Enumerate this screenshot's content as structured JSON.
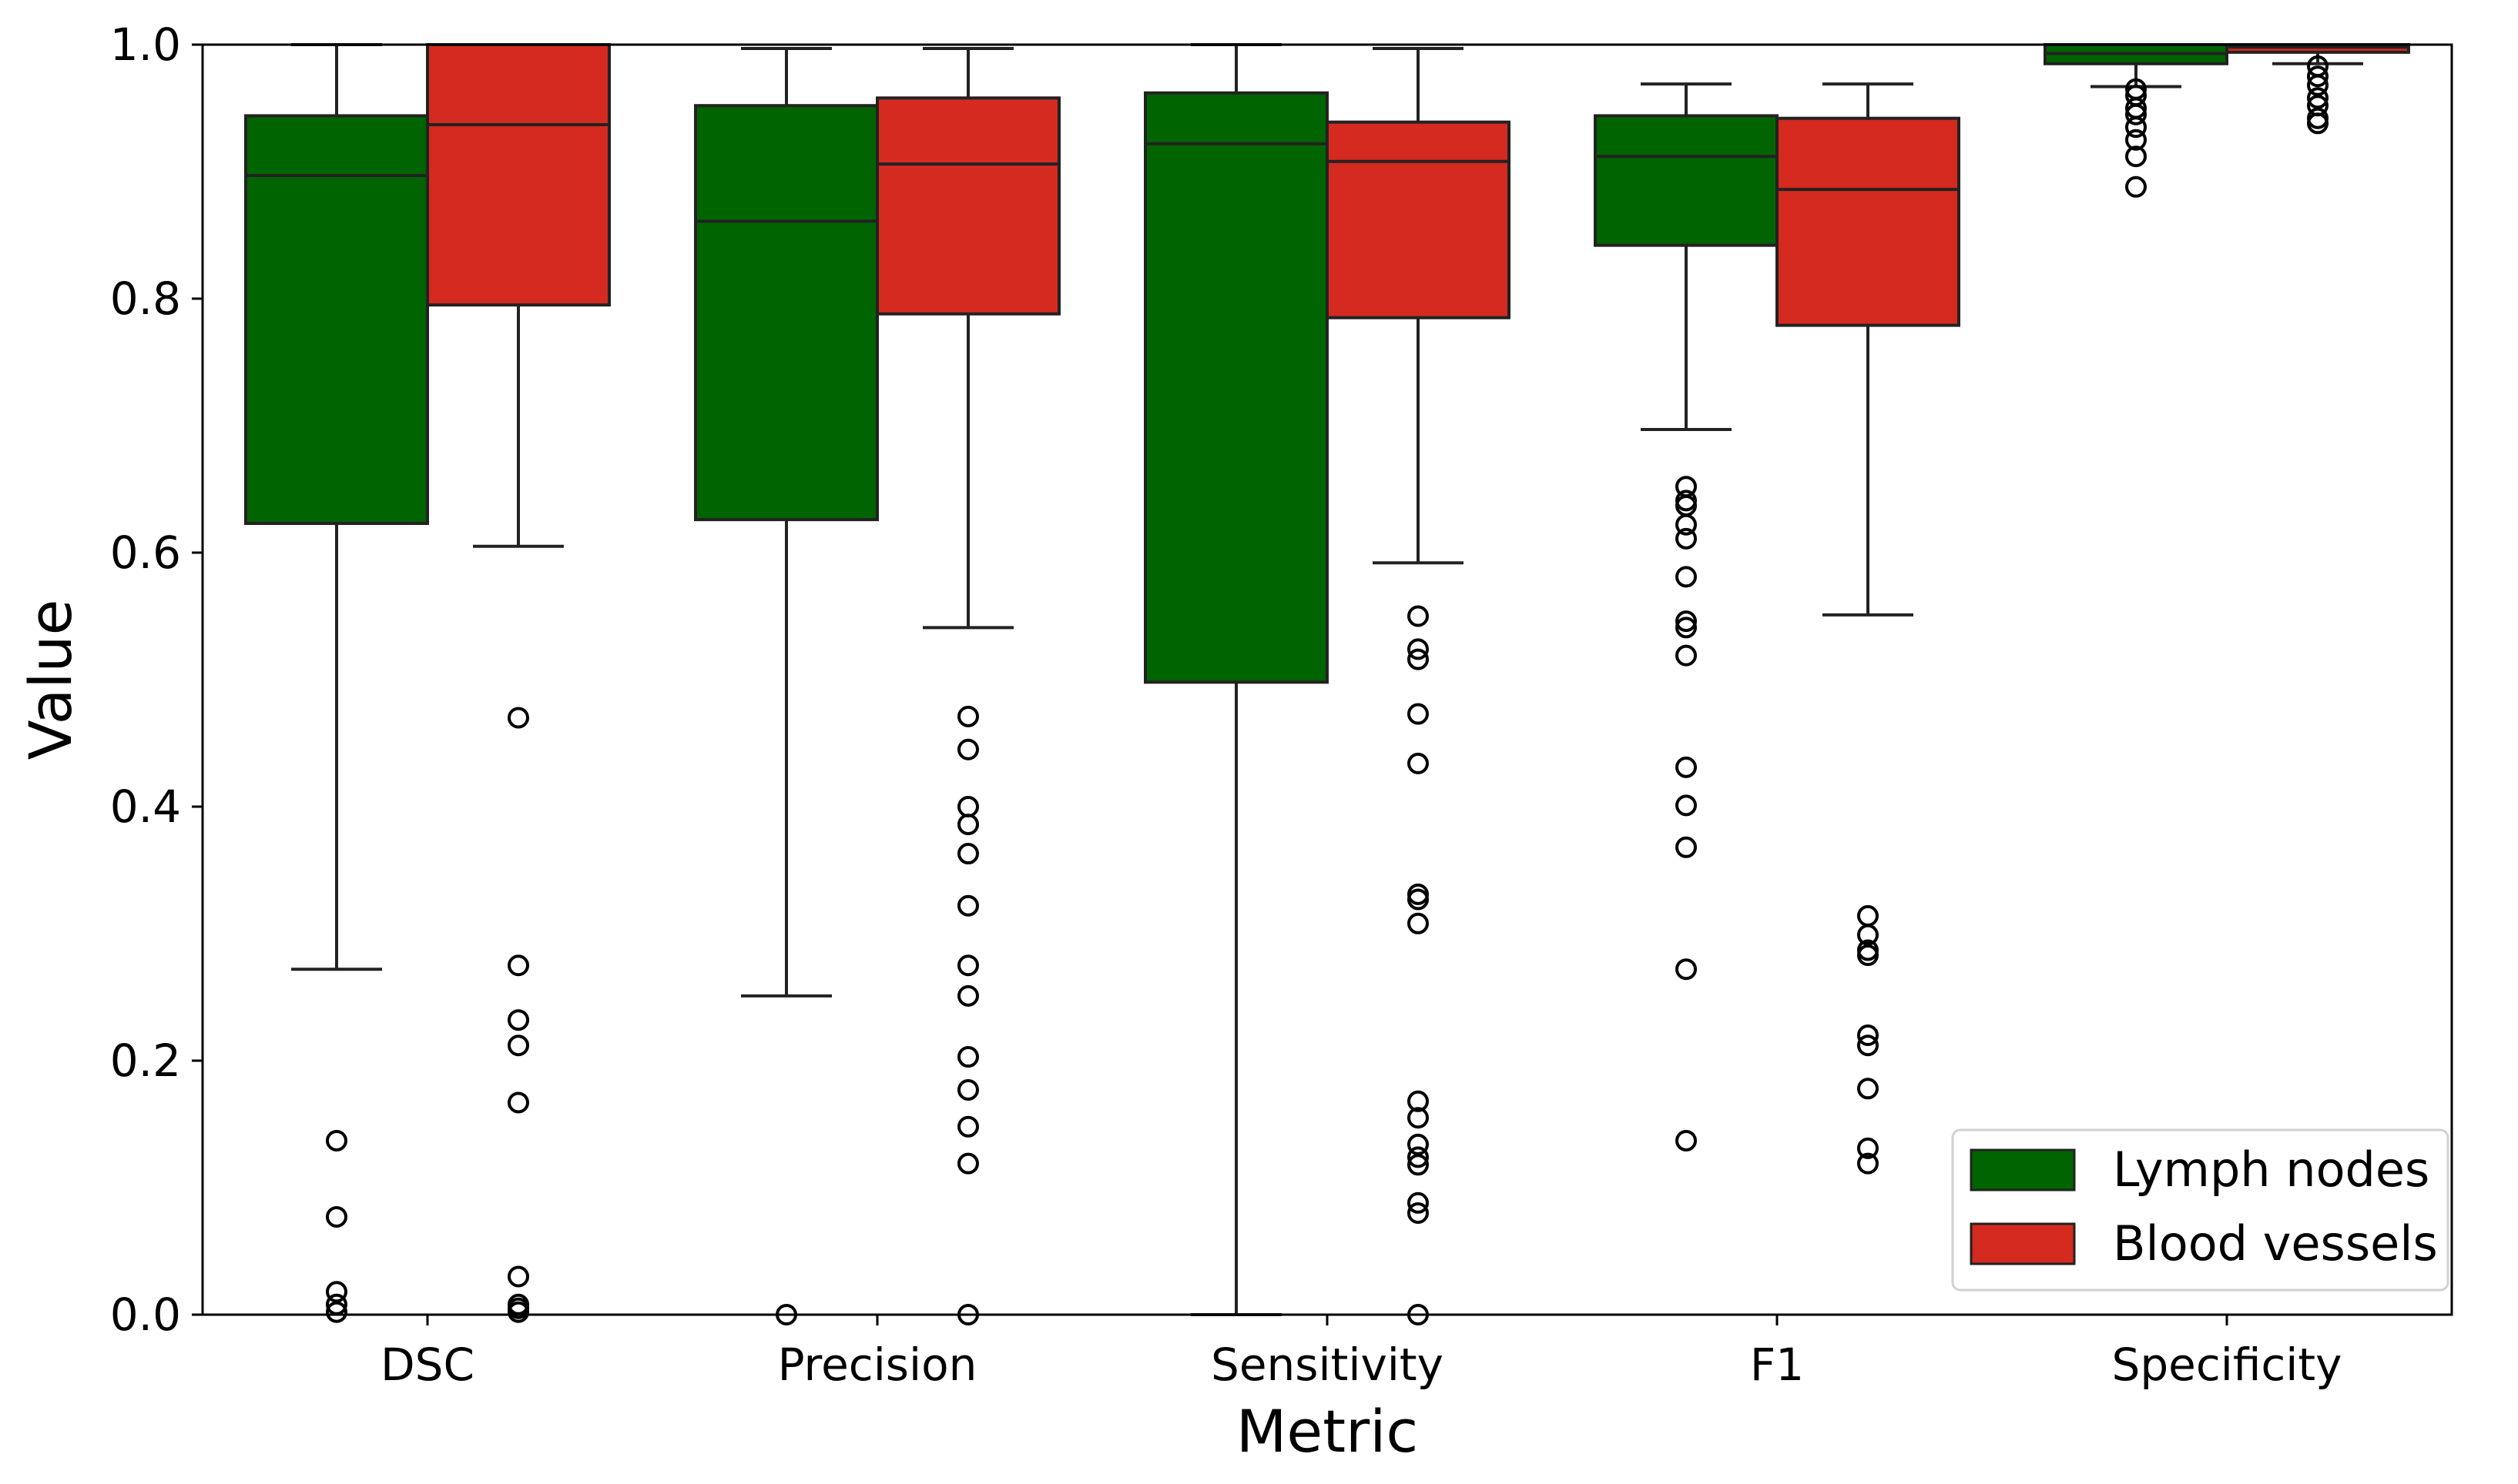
{
  "chart_data": {
    "type": "box",
    "title": "",
    "xlabel": "Metric",
    "ylabel": "Value",
    "ylim": [
      0.0,
      1.0
    ],
    "yticks": [
      "0.0",
      "0.2",
      "0.4",
      "0.6",
      "0.8",
      "1.0"
    ],
    "categories": [
      "DSC",
      "Precision",
      "Sensitivity",
      "F1",
      "Specificity"
    ],
    "legend": {
      "placement": "bottom-right"
    },
    "series": [
      {
        "name": "Lymph nodes",
        "color": "#006400",
        "boxes": [
          {
            "whislo": 0.272,
            "q1": 0.623,
            "med": 0.897,
            "q3": 0.944,
            "whishi": 1.0,
            "fliers": [
              0.137,
              0.077,
              0.018,
              0.008,
              0.002
            ]
          },
          {
            "whislo": 0.251,
            "q1": 0.626,
            "med": 0.861,
            "q3": 0.952,
            "whishi": 0.997,
            "fliers": [
              0.0
            ]
          },
          {
            "whislo": 0.0,
            "q1": 0.498,
            "med": 0.922,
            "q3": 0.962,
            "whishi": 1.0,
            "fliers": []
          },
          {
            "whislo": 0.697,
            "q1": 0.842,
            "med": 0.912,
            "q3": 0.944,
            "whishi": 0.969,
            "fliers": [
              0.652,
              0.641,
              0.637,
              0.622,
              0.611,
              0.581,
              0.546,
              0.541,
              0.519,
              0.431,
              0.401,
              0.368,
              0.272,
              0.137
            ]
          },
          {
            "whislo": 0.967,
            "q1": 0.985,
            "med": 0.993,
            "q3": 1.0,
            "whishi": 1.0,
            "fliers": [
              0.965,
              0.96,
              0.95,
              0.945,
              0.935,
              0.925,
              0.912,
              0.888
            ]
          }
        ]
      },
      {
        "name": "Blood vessels",
        "color": "#d42a20",
        "boxes": [
          {
            "whislo": 0.605,
            "q1": 0.795,
            "med": 0.937,
            "q3": 1.0,
            "whishi": 1.0,
            "fliers": [
              0.47,
              0.275,
              0.232,
              0.212,
              0.167,
              0.03,
              0.008,
              0.005,
              0.002
            ]
          },
          {
            "whislo": 0.541,
            "q1": 0.788,
            "med": 0.906,
            "q3": 0.958,
            "whishi": 0.997,
            "fliers": [
              0.471,
              0.445,
              0.4,
              0.386,
              0.363,
              0.322,
              0.275,
              0.251,
              0.203,
              0.177,
              0.148,
              0.119,
              0.0
            ]
          },
          {
            "whislo": 0.592,
            "q1": 0.785,
            "med": 0.908,
            "q3": 0.939,
            "whishi": 0.997,
            "fliers": [
              0.55,
              0.524,
              0.516,
              0.473,
              0.434,
              0.331,
              0.327,
              0.308,
              0.168,
              0.155,
              0.134,
              0.124,
              0.118,
              0.088,
              0.08,
              0.0
            ]
          },
          {
            "whislo": 0.551,
            "q1": 0.779,
            "med": 0.886,
            "q3": 0.942,
            "whishi": 0.969,
            "fliers": [
              0.314,
              0.299,
              0.287,
              0.283,
              0.22,
              0.212,
              0.178,
              0.131,
              0.119
            ]
          },
          {
            "whislo": 0.985,
            "q1": 0.994,
            "med": 0.998,
            "q3": 1.0,
            "whishi": 1.0,
            "fliers": [
              0.983,
              0.975,
              0.968,
              0.958,
              0.952,
              0.942,
              0.938
            ]
          }
        ]
      }
    ]
  }
}
